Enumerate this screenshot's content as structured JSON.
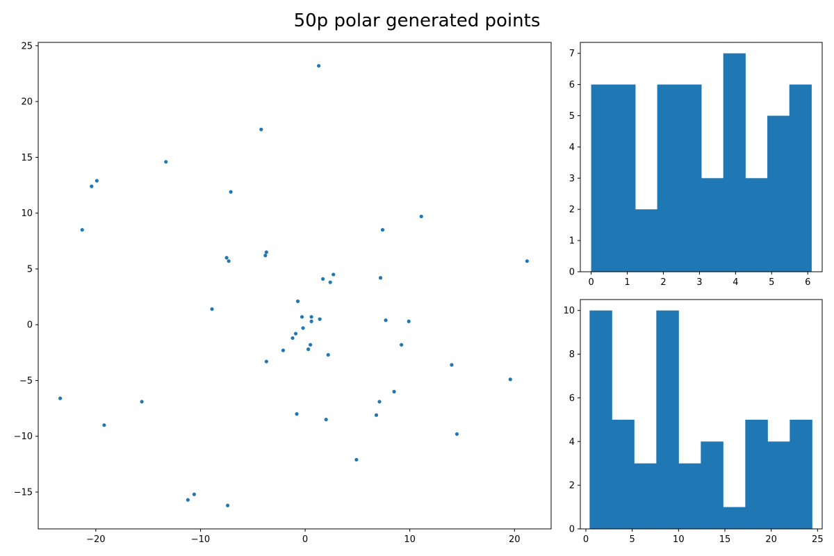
{
  "figure": {
    "title": "50p polar generated points"
  },
  "chart_data": [
    {
      "type": "scatter",
      "title": "",
      "xlabel": "",
      "ylabel": "",
      "xlim": [
        -25.5,
        23.5
      ],
      "ylim": [
        -18.3,
        25.3
      ],
      "xticks": [
        -20,
        -10,
        0,
        10,
        20
      ],
      "yticks": [
        -15,
        -10,
        -5,
        0,
        5,
        10,
        15,
        20,
        25
      ],
      "grid": false,
      "color": "#1f77b4",
      "points": [
        {
          "x": 1.3,
          "y": 23.2
        },
        {
          "x": -4.2,
          "y": 17.5
        },
        {
          "x": -13.3,
          "y": 14.6
        },
        {
          "x": -19.9,
          "y": 12.9
        },
        {
          "x": -20.4,
          "y": 12.4
        },
        {
          "x": -7.1,
          "y": 11.9
        },
        {
          "x": -21.3,
          "y": 8.5
        },
        {
          "x": 11.1,
          "y": 9.7
        },
        {
          "x": 7.4,
          "y": 8.5
        },
        {
          "x": -3.7,
          "y": 6.5
        },
        {
          "x": -3.8,
          "y": 6.2
        },
        {
          "x": -7.5,
          "y": 6.0
        },
        {
          "x": -7.3,
          "y": 5.7
        },
        {
          "x": 21.2,
          "y": 5.7
        },
        {
          "x": 2.7,
          "y": 4.5
        },
        {
          "x": 1.7,
          "y": 4.1
        },
        {
          "x": 2.4,
          "y": 3.8
        },
        {
          "x": 7.2,
          "y": 4.2
        },
        {
          "x": -0.7,
          "y": 2.1
        },
        {
          "x": -8.9,
          "y": 1.4
        },
        {
          "x": -0.3,
          "y": 0.7
        },
        {
          "x": 0.6,
          "y": 0.7
        },
        {
          "x": 1.4,
          "y": 0.5
        },
        {
          "x": 0.6,
          "y": 0.3
        },
        {
          "x": 7.7,
          "y": 0.4
        },
        {
          "x": 9.9,
          "y": 0.3
        },
        {
          "x": -0.2,
          "y": -0.3
        },
        {
          "x": -0.9,
          "y": -0.8
        },
        {
          "x": -1.2,
          "y": -1.2
        },
        {
          "x": 0.5,
          "y": -1.8
        },
        {
          "x": 9.2,
          "y": -1.8
        },
        {
          "x": -2.1,
          "y": -2.3
        },
        {
          "x": 0.3,
          "y": -2.2
        },
        {
          "x": 2.2,
          "y": -2.7
        },
        {
          "x": -3.7,
          "y": -3.3
        },
        {
          "x": 14.0,
          "y": -3.6
        },
        {
          "x": 19.6,
          "y": -4.9
        },
        {
          "x": -23.4,
          "y": -6.6
        },
        {
          "x": -15.6,
          "y": -6.9
        },
        {
          "x": 7.1,
          "y": -6.9
        },
        {
          "x": 8.5,
          "y": -6.0
        },
        {
          "x": -19.2,
          "y": -9.0
        },
        {
          "x": -0.8,
          "y": -8.0
        },
        {
          "x": 6.8,
          "y": -8.1
        },
        {
          "x": 2.0,
          "y": -8.5
        },
        {
          "x": 14.5,
          "y": -9.8
        },
        {
          "x": 4.9,
          "y": -12.1
        },
        {
          "x": -11.2,
          "y": -15.7
        },
        {
          "x": -10.6,
          "y": -15.2
        },
        {
          "x": -7.4,
          "y": -16.2
        }
      ]
    },
    {
      "type": "bar",
      "title": "",
      "xlabel": "",
      "ylabel": "",
      "xlim": [
        -0.3,
        6.4
      ],
      "ylim": [
        0,
        7.35
      ],
      "xticks": [
        0,
        1,
        2,
        3,
        4,
        5,
        6
      ],
      "yticks": [
        0,
        1,
        2,
        3,
        4,
        5,
        6,
        7
      ],
      "grid": false,
      "color": "#1f77b4",
      "bin_edges": [
        0.0,
        0.61,
        1.22,
        1.83,
        2.44,
        3.05,
        3.66,
        4.27,
        4.88,
        5.49,
        6.1
      ],
      "values": [
        6,
        6,
        2,
        6,
        6,
        3,
        7,
        3,
        5,
        6
      ]
    },
    {
      "type": "bar",
      "title": "",
      "xlabel": "",
      "ylabel": "",
      "xlim": [
        -0.6,
        25.5
      ],
      "ylim": [
        0,
        10.5
      ],
      "xticks": [
        0,
        5,
        10,
        15,
        20,
        25
      ],
      "yticks": [
        0,
        2,
        4,
        6,
        8,
        10
      ],
      "grid": false,
      "color": "#1f77b4",
      "bin_edges": [
        0.4,
        2.8,
        5.2,
        7.6,
        10.0,
        12.4,
        14.8,
        17.2,
        19.6,
        22.0,
        24.4
      ],
      "values": [
        10,
        5,
        3,
        10,
        3,
        4,
        1,
        5,
        4,
        5
      ]
    }
  ]
}
